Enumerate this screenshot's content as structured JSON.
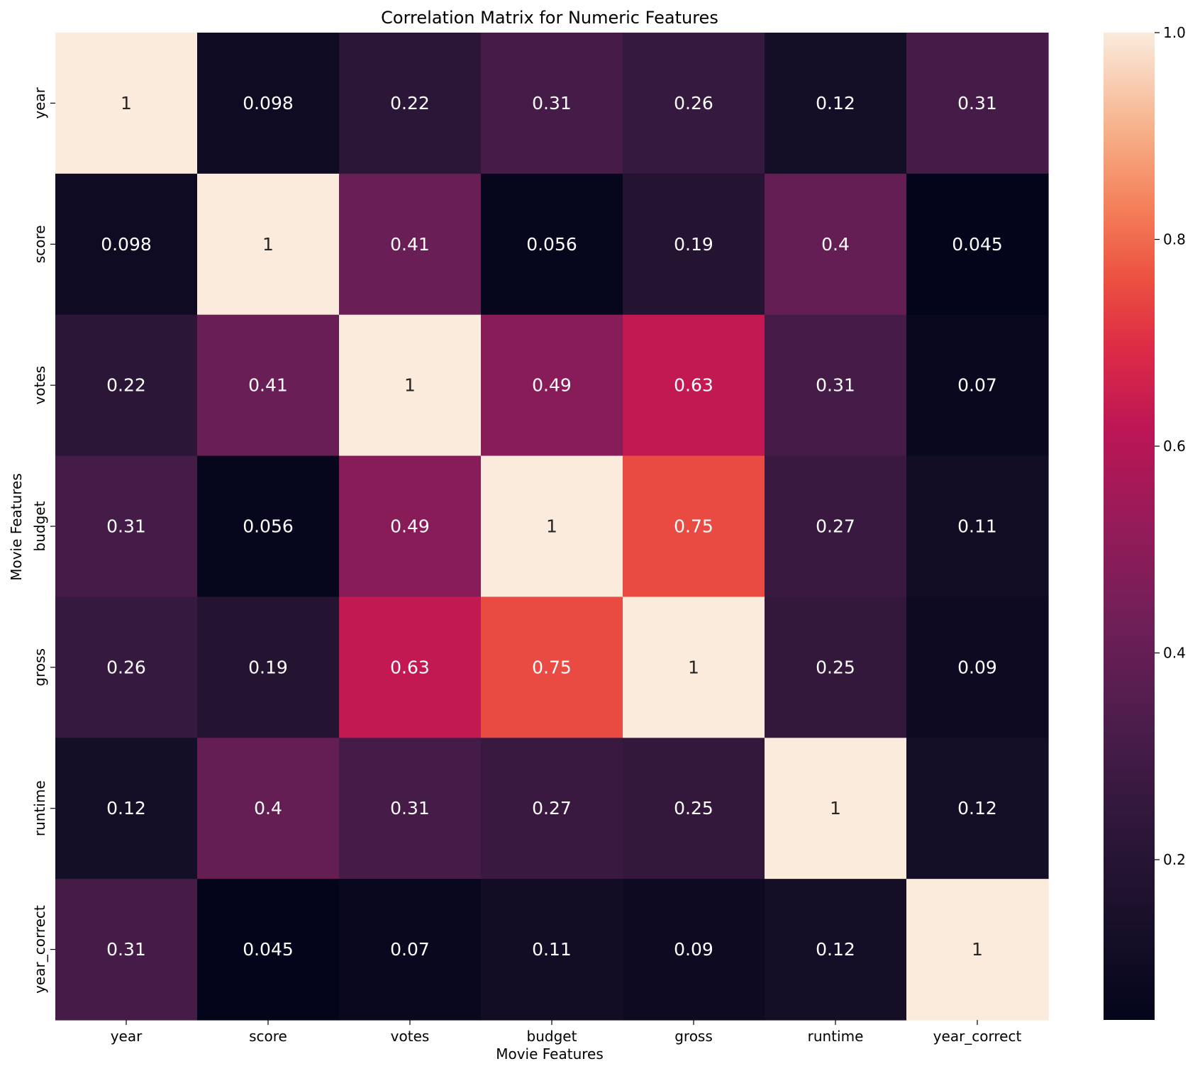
{
  "chart_data": {
    "type": "heatmap",
    "title": "Correlation Matrix for Numeric Features",
    "xlabel": "Movie Features",
    "ylabel": "Movie Features",
    "x_categories": [
      "year",
      "score",
      "votes",
      "budget",
      "gross",
      "runtime",
      "year_correct"
    ],
    "y_categories": [
      "year",
      "score",
      "votes",
      "budget",
      "gross",
      "runtime",
      "year_correct"
    ],
    "values": [
      [
        1,
        0.098,
        0.22,
        0.31,
        0.26,
        0.12,
        0.31
      ],
      [
        0.098,
        1,
        0.41,
        0.056,
        0.19,
        0.4,
        0.045
      ],
      [
        0.22,
        0.41,
        1,
        0.49,
        0.63,
        0.31,
        0.07
      ],
      [
        0.31,
        0.056,
        0.49,
        1,
        0.75,
        0.27,
        0.11
      ],
      [
        0.26,
        0.19,
        0.63,
        0.75,
        1,
        0.25,
        0.09
      ],
      [
        0.12,
        0.4,
        0.31,
        0.27,
        0.25,
        1,
        0.12
      ],
      [
        0.31,
        0.045,
        0.07,
        0.11,
        0.09,
        0.12,
        1
      ]
    ],
    "annotations": [
      [
        "1",
        "0.098",
        "0.22",
        "0.31",
        "0.26",
        "0.12",
        "0.31"
      ],
      [
        "0.098",
        "1",
        "0.41",
        "0.056",
        "0.19",
        "0.4",
        "0.045"
      ],
      [
        "0.22",
        "0.41",
        "1",
        "0.49",
        "0.63",
        "0.31",
        "0.07"
      ],
      [
        "0.31",
        "0.056",
        "0.49",
        "1",
        "0.75",
        "0.27",
        "0.11"
      ],
      [
        "0.26",
        "0.19",
        "0.63",
        "0.75",
        "1",
        "0.25",
        "0.09"
      ],
      [
        "0.12",
        "0.4",
        "0.31",
        "0.27",
        "0.25",
        "1",
        "0.12"
      ],
      [
        "0.31",
        "0.045",
        "0.07",
        "0.11",
        "0.09",
        "0.12",
        "1"
      ]
    ],
    "colorbar": {
      "range": [
        0.045,
        1.0
      ],
      "ticks": [
        0.2,
        0.4,
        0.6,
        0.8,
        1.0
      ],
      "tick_labels": [
        "0.2",
        "0.4",
        "0.6",
        "0.8",
        "1.0"
      ],
      "colormap": "rocket"
    }
  }
}
